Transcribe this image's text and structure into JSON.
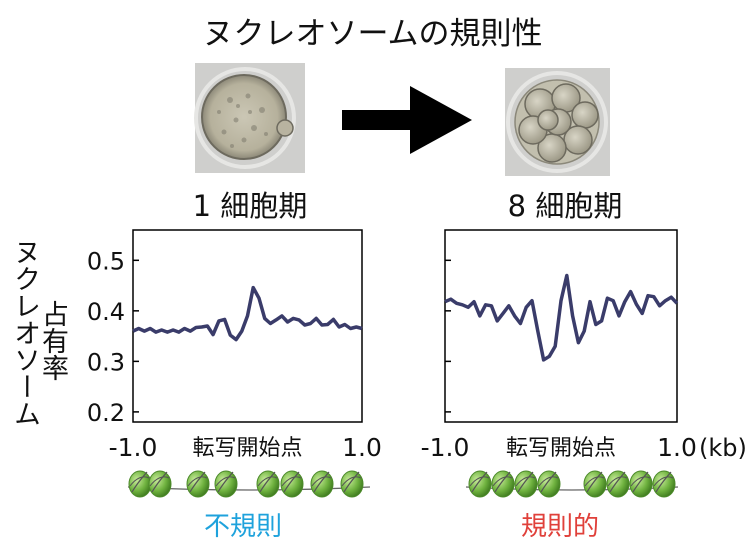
{
  "title": "ヌクレオソームの規則性",
  "stages": {
    "left": "1 細胞期",
    "right": "8 細胞期"
  },
  "y_axis_label": [
    "ヌクレオソーム",
    "占有率"
  ],
  "x_center_label": "転写開始点",
  "x_unit": "(kb)",
  "captions": {
    "left": "不規則",
    "right": "規則的"
  },
  "colors": {
    "line": "#3a3c6a",
    "left_caption": "#1ea2dc",
    "right_caption": "#e0403a",
    "nucleosome": "#6fb23f",
    "arrow": "#000000"
  },
  "chart_data": [
    {
      "type": "line",
      "panel": "1 細胞期",
      "xlim": [
        -1.0,
        1.0
      ],
      "ylim": [
        0.18,
        0.56
      ],
      "yticks": [
        0.2,
        0.3,
        0.4,
        0.5
      ],
      "ytick_labels": [
        "0.2",
        "0.3",
        "0.4",
        "0.5"
      ],
      "xtick_labels": [
        "-1.0",
        "1.0"
      ],
      "x": [
        -1.0,
        -0.95,
        -0.9,
        -0.85,
        -0.8,
        -0.75,
        -0.7,
        -0.65,
        -0.6,
        -0.55,
        -0.5,
        -0.45,
        -0.4,
        -0.35,
        -0.3,
        -0.25,
        -0.2,
        -0.15,
        -0.1,
        -0.05,
        0.0,
        0.05,
        0.1,
        0.15,
        0.2,
        0.25,
        0.3,
        0.35,
        0.4,
        0.45,
        0.5,
        0.55,
        0.6,
        0.65,
        0.7,
        0.75,
        0.8,
        0.85,
        0.9,
        0.95,
        1.0
      ],
      "y": [
        0.36,
        0.365,
        0.36,
        0.365,
        0.358,
        0.362,
        0.358,
        0.362,
        0.358,
        0.365,
        0.36,
        0.367,
        0.368,
        0.37,
        0.353,
        0.38,
        0.383,
        0.352,
        0.343,
        0.36,
        0.39,
        0.446,
        0.425,
        0.385,
        0.375,
        0.382,
        0.39,
        0.378,
        0.385,
        0.382,
        0.372,
        0.375,
        0.385,
        0.372,
        0.373,
        0.383,
        0.368,
        0.373,
        0.365,
        0.368,
        0.365
      ]
    },
    {
      "type": "line",
      "panel": "8 細胞期",
      "xlim": [
        -1.0,
        1.0
      ],
      "ylim": [
        0.18,
        0.56
      ],
      "xtick_labels": [
        "-1.0",
        "1.0"
      ],
      "x": [
        -1.0,
        -0.95,
        -0.9,
        -0.85,
        -0.8,
        -0.75,
        -0.7,
        -0.65,
        -0.6,
        -0.55,
        -0.5,
        -0.45,
        -0.4,
        -0.35,
        -0.3,
        -0.25,
        -0.2,
        -0.15,
        -0.1,
        -0.05,
        0.0,
        0.05,
        0.1,
        0.15,
        0.2,
        0.25,
        0.3,
        0.35,
        0.4,
        0.45,
        0.5,
        0.55,
        0.6,
        0.65,
        0.7,
        0.75,
        0.8,
        0.85,
        0.9,
        0.95,
        1.0
      ],
      "y": [
        0.418,
        0.423,
        0.415,
        0.412,
        0.407,
        0.418,
        0.39,
        0.412,
        0.41,
        0.38,
        0.395,
        0.41,
        0.39,
        0.375,
        0.407,
        0.42,
        0.36,
        0.303,
        0.31,
        0.33,
        0.42,
        0.47,
        0.39,
        0.337,
        0.36,
        0.418,
        0.373,
        0.38,
        0.425,
        0.42,
        0.39,
        0.418,
        0.438,
        0.413,
        0.395,
        0.43,
        0.428,
        0.41,
        0.42,
        0.427,
        0.415
      ]
    }
  ]
}
